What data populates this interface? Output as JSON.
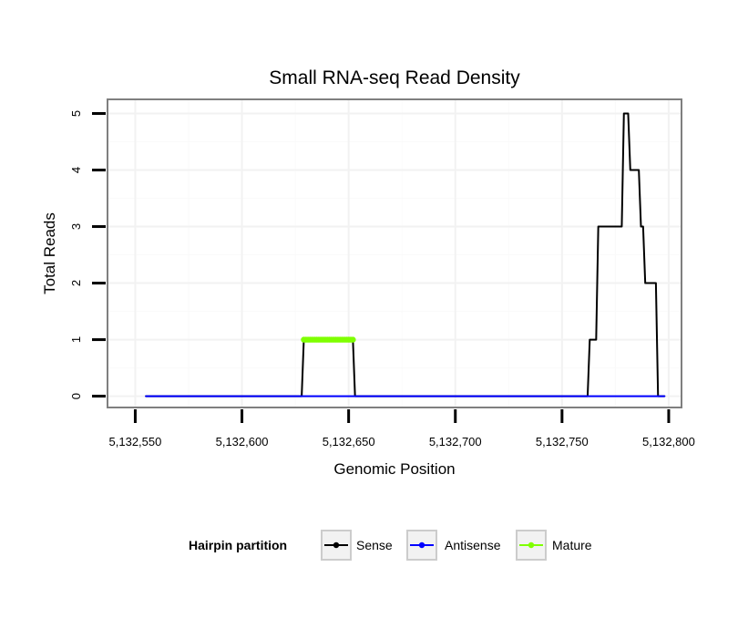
{
  "chart_data": {
    "type": "line",
    "title": "Small RNA-seq Read Density",
    "xlabel": "Genomic Position",
    "ylabel": "Total Reads",
    "xlim": [
      5132537,
      5132806
    ],
    "ylim": [
      -0.2,
      5.25
    ],
    "x_ticks": [
      5132550,
      5132600,
      5132650,
      5132700,
      5132750,
      5132800
    ],
    "x_tick_labels": [
      "5,132,550",
      "5,132,600",
      "5,132,650",
      "5,132,700",
      "5,132,750",
      "5,132,800"
    ],
    "y_ticks": [
      0,
      1,
      2,
      3,
      4,
      5
    ],
    "y_tick_labels": [
      "0",
      "1",
      "2",
      "3",
      "4",
      "5"
    ],
    "grid": true,
    "legend": {
      "title": "Hairpin partition",
      "placement": "bottom",
      "entries": [
        {
          "name": "Sense",
          "color": "#000000"
        },
        {
          "name": "Antisense",
          "color": "#0000ff"
        },
        {
          "name": "Mature",
          "color": "#7fff00"
        }
      ]
    },
    "series": [
      {
        "name": "Sense",
        "color": "#000000",
        "points": [
          [
            5132555,
            0
          ],
          [
            5132628,
            0
          ],
          [
            5132629,
            1
          ],
          [
            5132652,
            1
          ],
          [
            5132653,
            0
          ],
          [
            5132762,
            0
          ],
          [
            5132763,
            1
          ],
          [
            5132766,
            1
          ],
          [
            5132767,
            3
          ],
          [
            5132778,
            3
          ],
          [
            5132779,
            5
          ],
          [
            5132781,
            5
          ],
          [
            5132782,
            4
          ],
          [
            5132786,
            4
          ],
          [
            5132787,
            3
          ],
          [
            5132788,
            3
          ],
          [
            5132789,
            2
          ],
          [
            5132794,
            2
          ],
          [
            5132795,
            0
          ],
          [
            5132798,
            0
          ]
        ]
      },
      {
        "name": "Antisense",
        "color": "#0000ff",
        "points": [
          [
            5132555,
            0
          ],
          [
            5132798,
            0
          ]
        ]
      },
      {
        "name": "Mature",
        "color": "#7fff00",
        "points": [
          [
            5132629,
            1
          ],
          [
            5132652,
            1
          ]
        ]
      }
    ]
  }
}
